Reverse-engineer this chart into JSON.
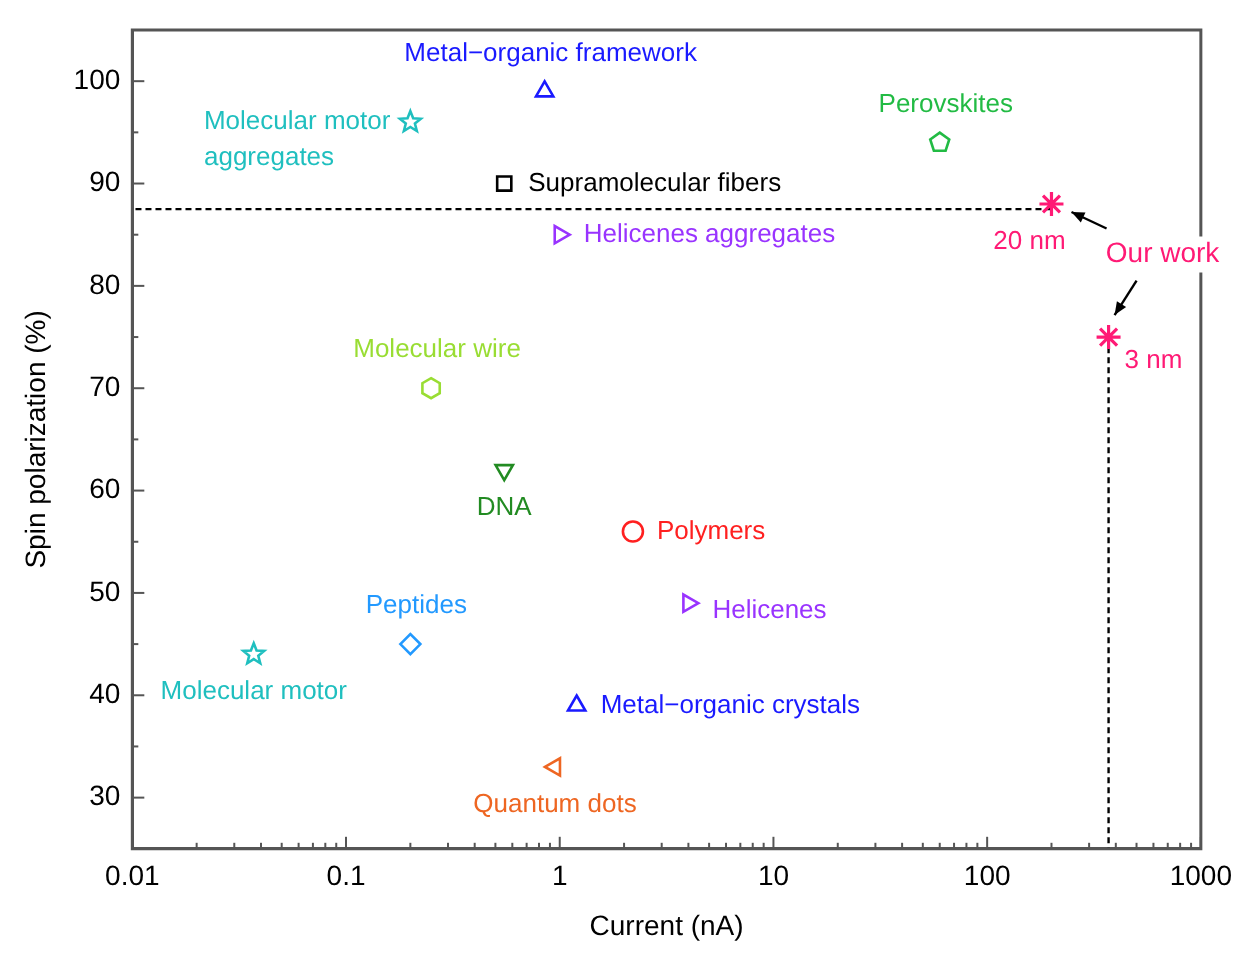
{
  "chart_data": {
    "type": "scatter",
    "xlabel": "Current (nA)",
    "ylabel": "Spin polarization (%)",
    "log": "x",
    "grid": false,
    "legend": false,
    "xlim": [
      0.01,
      1000
    ],
    "xticks": [
      0.01,
      {
        "value": 0.02,
        "label": null
      },
      {
        "value": 0.03,
        "label": null
      },
      {
        "value": 0.04,
        "label": null
      },
      {
        "value": 0.05,
        "label": null
      },
      {
        "value": 0.06,
        "label": null
      },
      {
        "value": 0.07,
        "label": null
      },
      {
        "value": 0.08,
        "label": null
      },
      {
        "value": 0.09,
        "label": null
      },
      0.1,
      {
        "value": 0.2,
        "label": null
      },
      {
        "value": 0.3,
        "label": null
      },
      {
        "value": 0.4,
        "label": null
      },
      {
        "value": 0.5,
        "label": null
      },
      {
        "value": 0.6,
        "label": null
      },
      {
        "value": 0.7,
        "label": null
      },
      {
        "value": 0.8,
        "label": null
      },
      {
        "value": 0.9,
        "label": null
      },
      1,
      {
        "value": 2,
        "label": null
      },
      {
        "value": 3,
        "label": null
      },
      {
        "value": 4,
        "label": null
      },
      {
        "value": 5,
        "label": null
      },
      {
        "value": 6,
        "label": null
      },
      {
        "value": 7,
        "label": null
      },
      {
        "value": 8,
        "label": null
      },
      {
        "value": 9,
        "label": null
      },
      10,
      {
        "value": 20,
        "label": null
      },
      {
        "value": 30,
        "label": null
      },
      {
        "value": 40,
        "label": null
      },
      {
        "value": 50,
        "label": null
      },
      {
        "value": 60,
        "label": null
      },
      {
        "value": 70,
        "label": null
      },
      {
        "value": 80,
        "label": null
      },
      {
        "value": 90,
        "label": null
      },
      100,
      {
        "value": 200,
        "label": null
      },
      {
        "value": 300,
        "label": null
      },
      {
        "value": 400,
        "label": null
      },
      {
        "value": 500,
        "label": null
      },
      {
        "value": 600,
        "label": null
      },
      {
        "value": 700,
        "label": null
      },
      {
        "value": 800,
        "label": null
      },
      {
        "value": 900,
        "label": null
      },
      1000
    ],
    "ylim": [
      25,
      105
    ],
    "yticks": [
      30,
      {
        "value": 35,
        "label": null
      },
      40,
      {
        "value": 45,
        "label": null
      },
      50,
      {
        "value": 55,
        "label": null
      },
      60,
      {
        "value": 65,
        "label": null
      },
      70,
      {
        "value": 75,
        "label": null
      },
      80,
      {
        "value": 85,
        "label": null
      },
      90,
      {
        "value": 95,
        "label": null
      },
      100
    ],
    "series": [
      {
        "name": "Metal−organic framework",
        "color": "#1a1aff",
        "marker": "triangle",
        "x": [
          0.85
        ],
        "values": [
          99
        ]
      },
      {
        "name": "Molecular motor aggregates",
        "color": "#1fbfbf",
        "marker": "star",
        "x": [
          0.2
        ],
        "values": [
          96
        ]
      },
      {
        "name": "Supramolecular fibers",
        "color": "#000000",
        "marker": "square",
        "x": [
          0.55
        ],
        "values": [
          90
        ]
      },
      {
        "name": "Helicenes aggregates",
        "color": "#9933ff",
        "marker": "triangle-right",
        "x": [
          1.0
        ],
        "values": [
          85
        ]
      },
      {
        "name": "Molecular wire",
        "color": "#99dd33",
        "x": [
          0.25
        ],
        "values": [
          70
        ]
      },
      {
        "name": "Perovskites",
        "color": "#22bb44",
        "x": [
          60
        ],
        "values": [
          94
        ]
      },
      {
        "color": "#ff1a75",
        "marker": "cross",
        "x": [
          200,
          370
        ],
        "values": [
          88,
          75
        ]
      },
      {
        "name": "DNA",
        "color": "#228b22",
        "marker": "triangle-down",
        "x": [
          0.55
        ],
        "values": [
          62
        ]
      },
      {
        "name": "Polymers",
        "color": "#ff2020",
        "marker": "circle",
        "x": [
          2.2
        ],
        "values": [
          56
        ]
      },
      {
        "name": "Helicenes",
        "color": "#9933ff",
        "marker": "triangle-right",
        "x": [
          4
        ],
        "values": [
          49
        ]
      },
      {
        "name": "Peptides",
        "color": "#2299ff",
        "marker": "diamond",
        "x": [
          0.2
        ],
        "values": [
          45
        ]
      },
      {
        "name": "Molecular motor",
        "color": "#1fbfbf",
        "marker": "star",
        "x": [
          0.037
        ],
        "values": [
          44
        ]
      },
      {
        "name": "Metal−organic crystals",
        "color": "#1a1aff",
        "marker": "triangle",
        "x": [
          1.2
        ],
        "values": [
          39
        ]
      },
      {
        "name": "Quantum dots",
        "color": "#ee6622",
        "marker": "triangle-left",
        "x": [
          0.95
        ],
        "values": [
          33
        ]
      },
      {
        "type": "line",
        "color": "#000000",
        "marker": "none",
        "line_style": "dashed",
        "x": [
          200,
          0.01
        ],
        "values": [
          87.5,
          87.5
        ]
      },
      {
        "type": "line",
        "color": "#000000",
        "marker": "none",
        "line_style": "dashed",
        "x": [
          370,
          370
        ],
        "values": [
          74,
          25
        ]
      }
    ],
    "annotations": [
      {
        "text": "20 nm",
        "x": 200,
        "y": 88
      },
      {
        "text": "3 nm",
        "x": 370,
        "y": 75
      },
      "Our work"
    ]
  }
}
